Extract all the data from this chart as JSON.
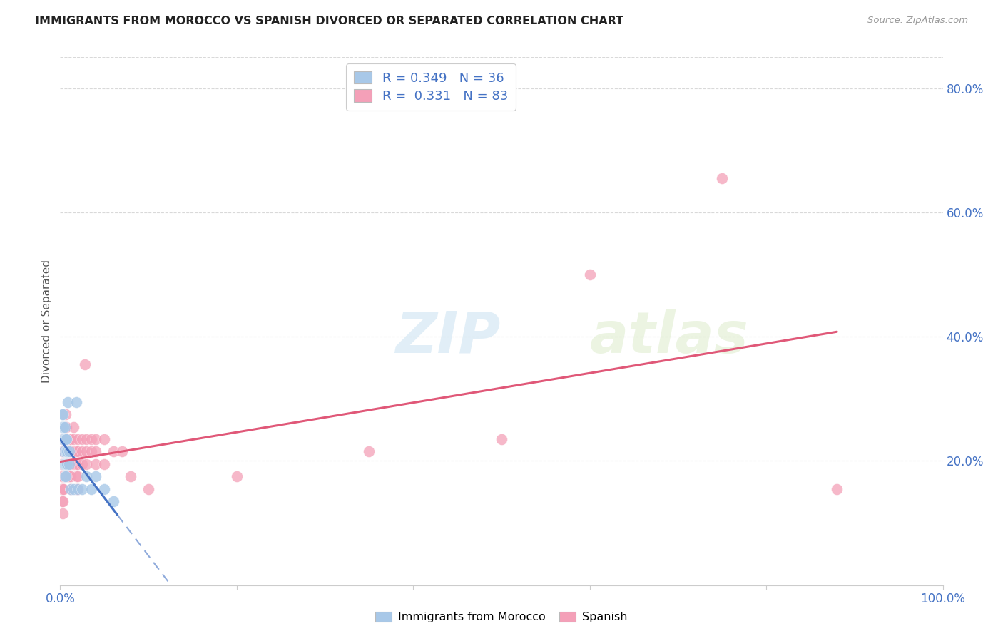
{
  "title": "IMMIGRANTS FROM MOROCCO VS SPANISH DIVORCED OR SEPARATED CORRELATION CHART",
  "source": "Source: ZipAtlas.com",
  "ylabel": "Divorced or Separated",
  "xmin": 0.0,
  "xmax": 1.0,
  "ymin": 0.0,
  "ymax": 0.85,
  "ytick_right_labels": [
    "80.0%",
    "60.0%",
    "40.0%",
    "20.0%"
  ],
  "ytick_right_vals": [
    0.8,
    0.6,
    0.4,
    0.2
  ],
  "blue_color": "#a8c8e8",
  "pink_color": "#f4a0b8",
  "blue_line_color": "#4472c4",
  "pink_line_color": "#e05878",
  "blue_scatter": [
    [
      0.001,
      0.255
    ],
    [
      0.002,
      0.275
    ],
    [
      0.002,
      0.255
    ],
    [
      0.003,
      0.275
    ],
    [
      0.003,
      0.255
    ],
    [
      0.003,
      0.235
    ],
    [
      0.004,
      0.255
    ],
    [
      0.004,
      0.235
    ],
    [
      0.004,
      0.215
    ],
    [
      0.004,
      0.195
    ],
    [
      0.005,
      0.255
    ],
    [
      0.005,
      0.235
    ],
    [
      0.005,
      0.195
    ],
    [
      0.005,
      0.175
    ],
    [
      0.006,
      0.235
    ],
    [
      0.006,
      0.215
    ],
    [
      0.006,
      0.195
    ],
    [
      0.006,
      0.175
    ],
    [
      0.007,
      0.235
    ],
    [
      0.007,
      0.215
    ],
    [
      0.007,
      0.195
    ],
    [
      0.008,
      0.215
    ],
    [
      0.008,
      0.195
    ],
    [
      0.009,
      0.295
    ],
    [
      0.01,
      0.215
    ],
    [
      0.01,
      0.195
    ],
    [
      0.012,
      0.155
    ],
    [
      0.015,
      0.155
    ],
    [
      0.018,
      0.295
    ],
    [
      0.02,
      0.155
    ],
    [
      0.025,
      0.155
    ],
    [
      0.03,
      0.175
    ],
    [
      0.035,
      0.155
    ],
    [
      0.04,
      0.175
    ],
    [
      0.05,
      0.155
    ],
    [
      0.06,
      0.135
    ]
  ],
  "pink_scatter": [
    [
      0.001,
      0.195
    ],
    [
      0.001,
      0.175
    ],
    [
      0.001,
      0.155
    ],
    [
      0.002,
      0.235
    ],
    [
      0.002,
      0.215
    ],
    [
      0.002,
      0.195
    ],
    [
      0.002,
      0.175
    ],
    [
      0.002,
      0.155
    ],
    [
      0.002,
      0.135
    ],
    [
      0.003,
      0.235
    ],
    [
      0.003,
      0.215
    ],
    [
      0.003,
      0.195
    ],
    [
      0.003,
      0.175
    ],
    [
      0.003,
      0.155
    ],
    [
      0.003,
      0.135
    ],
    [
      0.003,
      0.115
    ],
    [
      0.004,
      0.235
    ],
    [
      0.004,
      0.215
    ],
    [
      0.004,
      0.195
    ],
    [
      0.004,
      0.175
    ],
    [
      0.004,
      0.155
    ],
    [
      0.005,
      0.235
    ],
    [
      0.005,
      0.215
    ],
    [
      0.005,
      0.195
    ],
    [
      0.005,
      0.175
    ],
    [
      0.006,
      0.275
    ],
    [
      0.006,
      0.255
    ],
    [
      0.006,
      0.215
    ],
    [
      0.006,
      0.195
    ],
    [
      0.007,
      0.255
    ],
    [
      0.007,
      0.235
    ],
    [
      0.007,
      0.215
    ],
    [
      0.007,
      0.195
    ],
    [
      0.007,
      0.175
    ],
    [
      0.008,
      0.235
    ],
    [
      0.008,
      0.215
    ],
    [
      0.008,
      0.195
    ],
    [
      0.009,
      0.215
    ],
    [
      0.009,
      0.195
    ],
    [
      0.009,
      0.175
    ],
    [
      0.01,
      0.235
    ],
    [
      0.01,
      0.215
    ],
    [
      0.01,
      0.195
    ],
    [
      0.01,
      0.175
    ],
    [
      0.012,
      0.235
    ],
    [
      0.012,
      0.215
    ],
    [
      0.012,
      0.195
    ],
    [
      0.012,
      0.175
    ],
    [
      0.012,
      0.155
    ],
    [
      0.015,
      0.255
    ],
    [
      0.015,
      0.235
    ],
    [
      0.015,
      0.215
    ],
    [
      0.015,
      0.195
    ],
    [
      0.018,
      0.215
    ],
    [
      0.018,
      0.195
    ],
    [
      0.018,
      0.175
    ],
    [
      0.018,
      0.155
    ],
    [
      0.02,
      0.235
    ],
    [
      0.02,
      0.215
    ],
    [
      0.02,
      0.195
    ],
    [
      0.02,
      0.175
    ],
    [
      0.02,
      0.155
    ],
    [
      0.025,
      0.235
    ],
    [
      0.025,
      0.215
    ],
    [
      0.025,
      0.195
    ],
    [
      0.028,
      0.355
    ],
    [
      0.03,
      0.235
    ],
    [
      0.03,
      0.215
    ],
    [
      0.03,
      0.195
    ],
    [
      0.035,
      0.235
    ],
    [
      0.035,
      0.215
    ],
    [
      0.04,
      0.235
    ],
    [
      0.04,
      0.215
    ],
    [
      0.04,
      0.195
    ],
    [
      0.05,
      0.235
    ],
    [
      0.05,
      0.195
    ],
    [
      0.06,
      0.215
    ],
    [
      0.07,
      0.215
    ],
    [
      0.08,
      0.175
    ],
    [
      0.1,
      0.155
    ],
    [
      0.2,
      0.175
    ],
    [
      0.35,
      0.215
    ],
    [
      0.5,
      0.235
    ],
    [
      0.6,
      0.5
    ],
    [
      0.75,
      0.655
    ],
    [
      0.88,
      0.155
    ]
  ],
  "watermark_zip": "ZIP",
  "watermark_atlas": "atlas",
  "background_color": "#ffffff",
  "grid_color": "#d0d0d0"
}
